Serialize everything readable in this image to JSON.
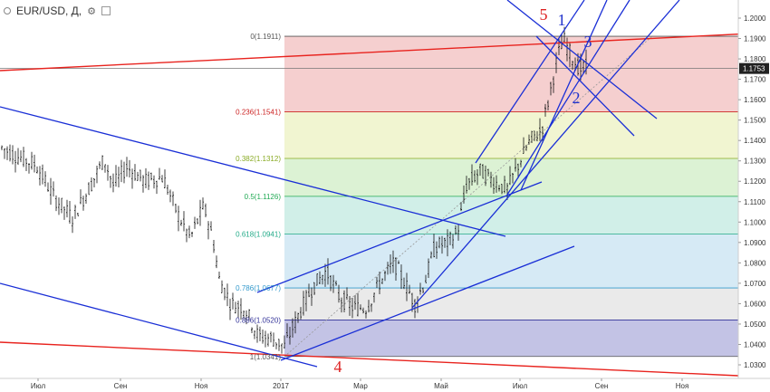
{
  "header": {
    "symbol": "EUR/USD, Д,",
    "settings_glyph": "⚙",
    "collapse_glyph": "▫"
  },
  "chart_data": {
    "type": "candlestick",
    "symbol": "EUR/USD",
    "timeframe": "Д",
    "ylim": [
      1.025,
      1.205
    ],
    "y_ticks": [
      "1.2000",
      "1.1900",
      "1.1800",
      "1.1700",
      "1.1600",
      "1.1500",
      "1.1400",
      "1.1300",
      "1.1200",
      "1.1100",
      "1.1000",
      "1.0900",
      "1.0800",
      "1.0700",
      "1.0600",
      "1.0500",
      "1.0400",
      "1.0300"
    ],
    "x_ticks": [
      "Июл",
      "Сен",
      "Ноя",
      "2017",
      "Мар",
      "Май",
      "Июл",
      "Сен",
      "Ноя"
    ],
    "current_price": "1.1753",
    "fibonacci": [
      {
        "label": "0(1.1911)",
        "value": 1.1911,
        "color": "#555555"
      },
      {
        "label": "0.236(1.1541)",
        "value": 1.1541,
        "color": "#cc2222"
      },
      {
        "label": "0.382(1.1312)",
        "value": 1.1312,
        "color": "#88aa22"
      },
      {
        "label": "0.5(1.1126)",
        "value": 1.1126,
        "color": "#22aa55"
      },
      {
        "label": "0.618(1.0941)",
        "value": 1.0941,
        "color": "#22aa88"
      },
      {
        "label": "0.786(1.0677)",
        "value": 1.0677,
        "color": "#3399cc"
      },
      {
        "label": "0.886(1.0520)",
        "value": 1.052,
        "color": "#333399"
      },
      {
        "label": "1(1.0341)",
        "value": 1.0341,
        "color": "#555555"
      }
    ],
    "fib_zone_colors": [
      "#f3c7c7",
      "#eef3c9",
      "#d6f0cc",
      "#c9ece4",
      "#cfe6f3",
      "#e6e6e6",
      "#b8b8e0"
    ],
    "wave_labels": [
      {
        "text": "5",
        "color": "#dd2222"
      },
      {
        "text": "1",
        "color": "#2233cc"
      },
      {
        "text": "3",
        "color": "#2233cc"
      },
      {
        "text": "2",
        "color": "#2233cc"
      },
      {
        "text": "4",
        "color": "#dd2222"
      }
    ],
    "trendline_colors": {
      "red": "#e8231e",
      "blue": "#1a2fd6"
    }
  }
}
